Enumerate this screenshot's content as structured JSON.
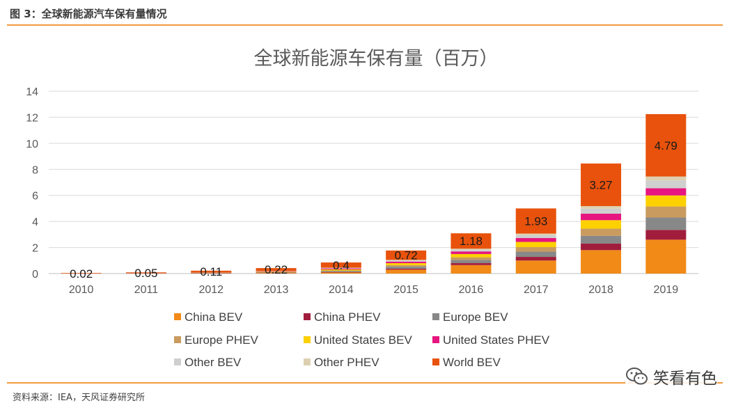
{
  "figure_caption": "图 3：全球新能源汽车保有量情况",
  "source_note": "资料来源：IEA，天风证券研究所",
  "watermark_text": "笑看有色",
  "colors": {
    "China BEV": "#f18a17",
    "China PHEV": "#a11d3c",
    "Europe BEV": "#888888",
    "Europe PHEV": "#c99b5e",
    "United States BEV": "#fdd000",
    "United States PHEV": "#e6157f",
    "Other BEV": "#cfcfcf",
    "Other PHEV": "#ddd0b0",
    "World BEV": "#e8520c",
    "rule": "#f29a3c",
    "grid": "#d9d9d9"
  },
  "chart_data": {
    "type": "bar",
    "stacked": true,
    "title": "全球新能源车保有量（百万）",
    "xlabel": "",
    "ylabel": "",
    "ylim": [
      0,
      14
    ],
    "yticks": [
      0,
      2,
      4,
      6,
      8,
      10,
      12,
      14
    ],
    "grid": true,
    "legend_position": "bottom",
    "categories": [
      "2010",
      "2011",
      "2012",
      "2013",
      "2014",
      "2015",
      "2016",
      "2017",
      "2018",
      "2019"
    ],
    "series": [
      {
        "name": "China BEV",
        "values": [
          0.0,
          0.01,
          0.02,
          0.04,
          0.08,
          0.3,
          0.65,
          1.0,
          1.8,
          2.6
        ]
      },
      {
        "name": "China PHEV",
        "values": [
          0.0,
          0.0,
          0.01,
          0.01,
          0.03,
          0.08,
          0.15,
          0.28,
          0.5,
          0.75
        ]
      },
      {
        "name": "Europe BEV",
        "values": [
          0.0,
          0.01,
          0.02,
          0.03,
          0.08,
          0.15,
          0.25,
          0.4,
          0.6,
          0.95
        ]
      },
      {
        "name": "Europe PHEV",
        "values": [
          0.0,
          0.0,
          0.01,
          0.02,
          0.05,
          0.12,
          0.2,
          0.35,
          0.55,
          0.85
        ]
      },
      {
        "name": "United States BEV",
        "values": [
          0.0,
          0.01,
          0.02,
          0.04,
          0.08,
          0.15,
          0.25,
          0.4,
          0.65,
          0.85
        ]
      },
      {
        "name": "United States PHEV",
        "values": [
          0.0,
          0.01,
          0.02,
          0.03,
          0.07,
          0.12,
          0.2,
          0.3,
          0.5,
          0.55
        ]
      },
      {
        "name": "Other BEV",
        "values": [
          0.0,
          0.0,
          0.01,
          0.02,
          0.04,
          0.08,
          0.13,
          0.22,
          0.38,
          0.6
        ]
      },
      {
        "name": "Other PHEV",
        "values": [
          0.0,
          0.0,
          0.0,
          0.01,
          0.02,
          0.05,
          0.08,
          0.12,
          0.2,
          0.3
        ]
      },
      {
        "name": "World BEV",
        "values": [
          0.02,
          0.05,
          0.11,
          0.22,
          0.4,
          0.72,
          1.18,
          1.93,
          3.27,
          4.79
        ]
      }
    ],
    "data_labels": {
      "series": "World BEV",
      "values": [
        "0.02",
        "0.05",
        "0.11",
        "0.22",
        "0.4",
        "0.72",
        "1.18",
        "1.93",
        "3.27",
        "4.79"
      ]
    }
  }
}
